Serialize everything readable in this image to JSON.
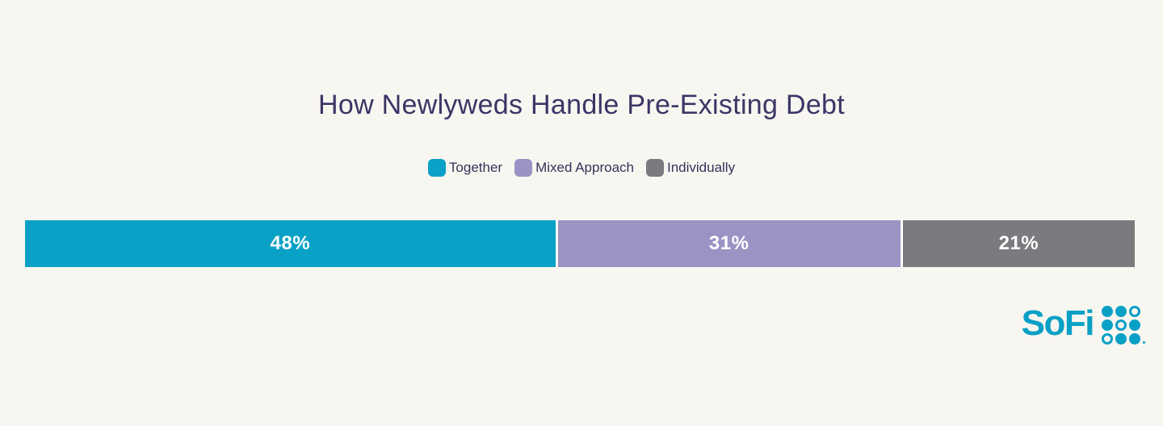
{
  "page": {
    "background": "#F8F6F0"
  },
  "chart_data": {
    "type": "bar",
    "variant": "horizontal-stacked-single-bar",
    "title": "How Newlyweds Handle Pre-Existing Debt",
    "categories": [
      "Together",
      "Mixed Approach",
      "Individually"
    ],
    "values": [
      48,
      31,
      21
    ],
    "unit": "%",
    "colors": [
      "#0AA1C6",
      "#9A93C4",
      "#7B7A7E"
    ],
    "xlim": [
      0,
      100
    ],
    "grid": false,
    "legend_position": "top-center",
    "value_labels_inside_segments": true
  },
  "title": {
    "text": "How Newlyweds Handle Pre-Existing Debt",
    "color": "#3B3566"
  },
  "legend": {
    "items": [
      {
        "label": "Together",
        "color": "#0AA1C6"
      },
      {
        "label": "Mixed Approach",
        "color": "#9A93C4"
      },
      {
        "label": "Individually",
        "color": "#7B7A7E"
      }
    ]
  },
  "bar": {
    "segments": [
      {
        "name": "Together",
        "value": 48,
        "label": "48%",
        "color": "#0AA1C6"
      },
      {
        "name": "Mixed Approach",
        "value": 31,
        "label": "31%",
        "color": "#9A93C4"
      },
      {
        "name": "Individually",
        "value": 21,
        "label": "21%",
        "color": "#7B7A7E"
      }
    ]
  },
  "logo": {
    "text": "SoFi",
    "color": "#0AA0C6",
    "dot_pattern": [
      [
        1,
        1,
        0
      ],
      [
        1,
        0,
        1
      ],
      [
        0,
        1,
        1
      ]
    ]
  }
}
